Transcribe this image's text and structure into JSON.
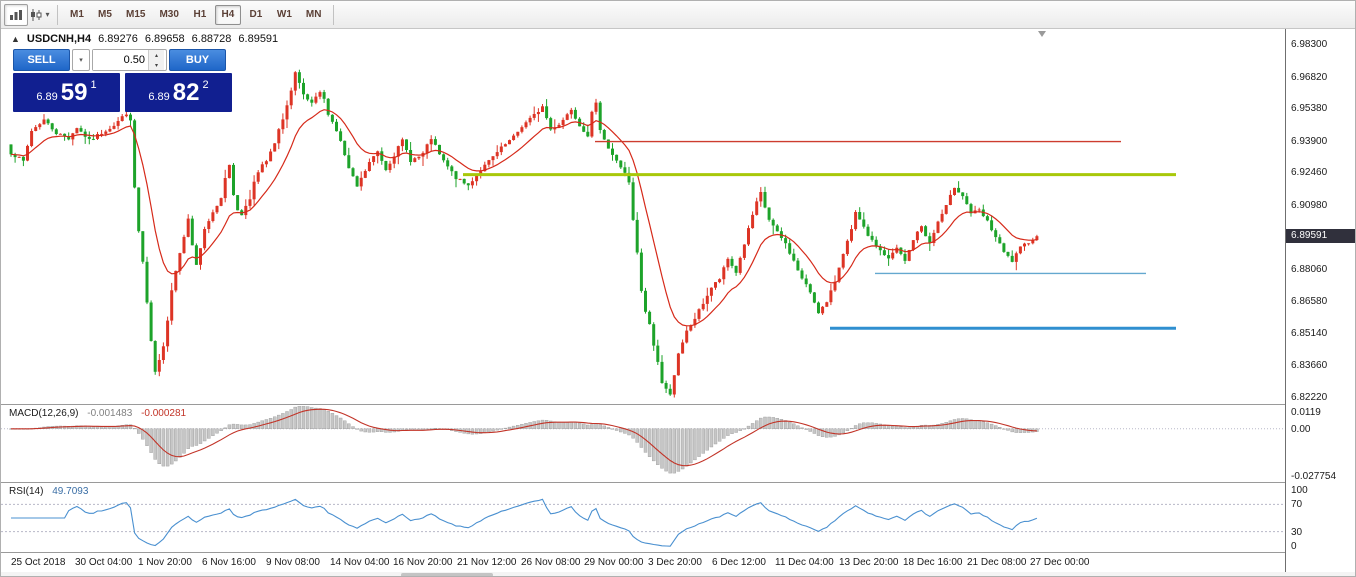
{
  "toolbar": {
    "timeframes": [
      "M1",
      "M5",
      "M15",
      "M30",
      "H1",
      "H4",
      "D1",
      "W1",
      "MN"
    ],
    "active_timeframe": "H4"
  },
  "symbol_header": {
    "symbol": "USDCNH,H4",
    "open": "6.89276",
    "high": "6.89658",
    "low": "6.88728",
    "close": "6.89591"
  },
  "trade_panel": {
    "sell_label": "SELL",
    "buy_label": "BUY",
    "lot_value": "0.50",
    "sell_price": {
      "prefix": "6.89",
      "big": "59",
      "sup": "1"
    },
    "buy_price": {
      "prefix": "6.89",
      "big": "82",
      "sup": "2"
    }
  },
  "price_axis": {
    "labels": [
      "6.98300",
      "6.96820",
      "6.95380",
      "6.93900",
      "6.92460",
      "6.90980",
      "6.89540",
      "6.88060",
      "6.86580",
      "6.85140",
      "6.83660",
      "6.82220"
    ],
    "current": "6.89591"
  },
  "macd_panel": {
    "title": "MACD(12,26,9)",
    "value_main": "-0.001483",
    "value_signal": "-0.000281",
    "axis": [
      "0.0119",
      "0.00",
      "-0.027754"
    ]
  },
  "rsi_panel": {
    "title": "RSI(14)",
    "value": "49.7093",
    "axis": [
      "100",
      "70",
      "30",
      "0"
    ]
  },
  "time_axis": [
    "25 Oct 2018",
    "30 Oct 04:00",
    "1 Nov 20:00",
    "6 Nov 16:00",
    "9 Nov 08:00",
    "14 Nov 04:00",
    "16 Nov 20:00",
    "21 Nov 12:00",
    "26 Nov 08:00",
    "29 Nov 00:00",
    "3 Dec 20:00",
    "6 Dec 12:00",
    "11 Dec 04:00",
    "13 Dec 20:00",
    "18 Dec 16:00",
    "21 Dec 08:00",
    "27 Dec 00:00"
  ],
  "chart_data": {
    "type": "candlestick",
    "symbol": "USDCNH",
    "timeframe": "H4",
    "current_bar": {
      "open": 6.89276,
      "high": 6.89658,
      "low": 6.88728,
      "close": 6.89591
    },
    "n_candles": 250,
    "ylim": [
      6.8195,
      6.9903
    ],
    "colors": {
      "up": "#dd3425",
      "down": "#1da32a",
      "ma": "#d62a1a",
      "macd_hist": "#c6c6c6",
      "macd_hist_border": "#9a9a9a",
      "macd_signal": "#c23428",
      "rsi_line": "#4a90d0",
      "level_dotted": "#b8b8c8",
      "badge_bg": "#30303c"
    },
    "hlines": [
      {
        "name": "resistance-line-red",
        "price": 6.939,
        "x1": 0.463,
        "x2": 0.872,
        "color": "#cd3d2f",
        "width": 1.4
      },
      {
        "name": "resistance-line-green",
        "price": 6.924,
        "x1": 0.36,
        "x2": 0.915,
        "color": "#a8c80a",
        "width": 3
      },
      {
        "name": "support-line-blue-thin",
        "price": 6.879,
        "x1": 0.681,
        "x2": 0.892,
        "color": "#64a8cf",
        "width": 1.4
      },
      {
        "name": "support-line-blue-thick",
        "price": 6.854,
        "x1": 0.646,
        "x2": 0.915,
        "color": "#2f8fd0",
        "width": 3
      }
    ],
    "indicators": {
      "macd": {
        "fast": 12,
        "slow": 26,
        "signal": 9,
        "current_hist": -0.001483,
        "current_signal": -0.000281,
        "scale_max": 0.0119,
        "scale_min": -0.027754
      },
      "rsi": {
        "period": 14,
        "current": 49.7093,
        "levels": [
          70,
          30
        ]
      },
      "ma": {
        "period": 13
      }
    },
    "price_waypoints": [
      [
        0,
        6.934
      ],
      [
        3,
        6.93
      ],
      [
        5,
        6.944
      ],
      [
        8,
        6.949
      ],
      [
        11,
        6.943
      ],
      [
        14,
        6.9405
      ],
      [
        16,
        6.9455
      ],
      [
        19,
        6.9395
      ],
      [
        22,
        6.943
      ],
      [
        25,
        6.9465
      ],
      [
        28,
        6.952
      ],
      [
        29,
        6.948
      ],
      [
        30,
        6.918
      ],
      [
        31,
        6.898
      ],
      [
        32,
        6.884
      ],
      [
        33,
        6.865
      ],
      [
        34,
        6.848
      ],
      [
        35,
        6.8335
      ],
      [
        36,
        6.839
      ],
      [
        37,
        6.8465
      ],
      [
        38,
        6.858
      ],
      [
        39,
        6.8715
      ],
      [
        41,
        6.889
      ],
      [
        43,
        6.9035
      ],
      [
        44,
        6.892
      ],
      [
        45,
        6.883
      ],
      [
        46,
        6.8905
      ],
      [
        47,
        6.8985
      ],
      [
        49,
        6.9065
      ],
      [
        51,
        6.9135
      ],
      [
        52,
        6.923
      ],
      [
        53,
        6.929
      ],
      [
        54,
        6.914
      ],
      [
        55,
        6.908
      ],
      [
        56,
        6.906
      ],
      [
        58,
        6.913
      ],
      [
        59,
        6.9215
      ],
      [
        61,
        6.928
      ],
      [
        62,
        6.93
      ],
      [
        64,
        6.938
      ],
      [
        65,
        6.944
      ],
      [
        67,
        6.9555
      ],
      [
        68,
        6.962
      ],
      [
        69,
        6.97
      ],
      [
        70,
        6.965
      ],
      [
        71,
        6.96
      ],
      [
        73,
        6.956
      ],
      [
        75,
        6.9615
      ],
      [
        76,
        6.958
      ],
      [
        77,
        6.952
      ],
      [
        79,
        6.944
      ],
      [
        80,
        6.939
      ],
      [
        82,
        6.9265
      ],
      [
        84,
        6.9185
      ],
      [
        85,
        6.922
      ],
      [
        87,
        6.9295
      ],
      [
        89,
        6.9345
      ],
      [
        91,
        6.9265
      ],
      [
        93,
        6.933
      ],
      [
        95,
        6.9395
      ],
      [
        97,
        6.9305
      ],
      [
        99,
        6.932
      ],
      [
        100,
        6.9335
      ],
      [
        102,
        6.9405
      ],
      [
        104,
        6.933
      ],
      [
        105,
        6.93
      ],
      [
        107,
        6.925
      ],
      [
        108,
        6.9225
      ],
      [
        110,
        6.92
      ],
      [
        111,
        6.919
      ],
      [
        113,
        6.924
      ],
      [
        116,
        6.93
      ],
      [
        119,
        6.936
      ],
      [
        122,
        6.941
      ],
      [
        124,
        6.946
      ],
      [
        127,
        6.951
      ],
      [
        129,
        6.955
      ],
      [
        131,
        6.9445
      ],
      [
        133,
        6.947
      ],
      [
        134,
        6.949
      ],
      [
        136,
        6.954
      ],
      [
        138,
        6.9465
      ],
      [
        140,
        6.942
      ],
      [
        141,
        6.952
      ],
      [
        142,
        6.956
      ],
      [
        143,
        6.945
      ],
      [
        145,
        6.936
      ],
      [
        147,
        6.93
      ],
      [
        149,
        6.925
      ],
      [
        150,
        6.92
      ],
      [
        151,
        6.903
      ],
      [
        152,
        6.888
      ],
      [
        153,
        6.871
      ],
      [
        154,
        6.861
      ],
      [
        155,
        6.856
      ],
      [
        156,
        6.846
      ],
      [
        157,
        6.839
      ],
      [
        158,
        6.829
      ],
      [
        159,
        6.826
      ],
      [
        160,
        6.8245
      ],
      [
        161,
        6.833
      ],
      [
        162,
        6.842
      ],
      [
        163,
        6.847
      ],
      [
        164,
        6.8525
      ],
      [
        165,
        6.8555
      ],
      [
        166,
        6.8585
      ],
      [
        168,
        6.8655
      ],
      [
        170,
        6.8725
      ],
      [
        172,
        6.8765
      ],
      [
        174,
        6.8855
      ],
      [
        176,
        6.8795
      ],
      [
        178,
        6.8925
      ],
      [
        180,
        6.9055
      ],
      [
        181,
        6.911
      ],
      [
        182,
        6.9155
      ],
      [
        183,
        6.909
      ],
      [
        184,
        6.9035
      ],
      [
        186,
        6.8975
      ],
      [
        188,
        6.8925
      ],
      [
        190,
        6.8845
      ],
      [
        192,
        6.8765
      ],
      [
        194,
        6.8705
      ],
      [
        196,
        6.8615
      ],
      [
        198,
        6.8655
      ],
      [
        200,
        6.8755
      ],
      [
        202,
        6.8885
      ],
      [
        204,
        6.8985
      ],
      [
        205,
        6.9065
      ],
      [
        207,
        6.8995
      ],
      [
        209,
        6.8935
      ],
      [
        211,
        6.8895
      ],
      [
        213,
        6.8855
      ],
      [
        215,
        6.8905
      ],
      [
        217,
        6.8845
      ],
      [
        219,
        6.8945
      ],
      [
        221,
        6.9005
      ],
      [
        223,
        6.8925
      ],
      [
        225,
        6.9025
      ],
      [
        227,
        6.9095
      ],
      [
        229,
        6.9185
      ],
      [
        231,
        6.9145
      ],
      [
        233,
        6.9065
      ],
      [
        235,
        6.9075
      ],
      [
        237,
        6.9025
      ],
      [
        239,
        6.8955
      ],
      [
        241,
        6.8885
      ],
      [
        243,
        6.8845
      ],
      [
        245,
        6.8905
      ],
      [
        247,
        6.8935
      ],
      [
        249,
        6.89591
      ]
    ]
  }
}
